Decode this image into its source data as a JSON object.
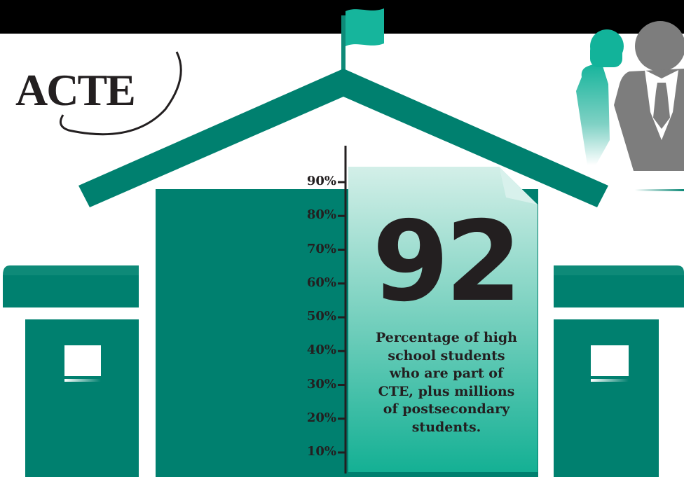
{
  "logo": {
    "text": "ACTE"
  },
  "colors": {
    "teal_dark": "#00806f",
    "teal_mid": "#0e8a78",
    "teal_light": "#16b59c",
    "paper_top": "#cfeee6",
    "paper_bottom": "#17b396",
    "gray_person": "#7d7d7d",
    "text": "#231f20"
  },
  "icons": [
    "flag-icon",
    "people-icon"
  ],
  "stat": {
    "value": "92",
    "caption_lines": [
      "Percentage of high",
      "school students",
      "who are part of",
      "CTE, plus millions",
      "of postsecondary",
      "students."
    ]
  },
  "chart_data": {
    "type": "bar",
    "categories": [
      ""
    ],
    "values": [
      92
    ],
    "ylim": [
      0,
      100
    ],
    "y_ticks": [
      "90%",
      "80%",
      "70%",
      "60%",
      "50%",
      "40%",
      "30%",
      "20%",
      "10%"
    ]
  }
}
